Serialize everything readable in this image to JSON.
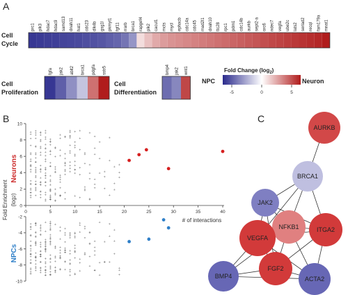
{
  "panels": {
    "a": "A",
    "b": "B",
    "c": "C"
  },
  "heatmap": {
    "row_labels": {
      "cell_cycle": [
        "Cell",
        "Cycle"
      ],
      "proliferation": [
        "Cell",
        "Proliferation"
      ],
      "differentiation": [
        "Cell",
        "Differentiation"
      ]
    },
    "cell_cycle_genes": [
      "prc1",
      "plk3",
      "hdac7",
      "hdac9",
      "samd13",
      "dnah11",
      "hat1",
      "cdc23",
      "dlk4b",
      "gsg1l",
      "pkmyt1",
      "fgf11",
      "rrarb",
      "brca1",
      "rapgef4",
      "plk2",
      "cacul1",
      "mcts",
      "mycl",
      "ephacb",
      "cdc14a",
      "cdc45",
      "mad2l1",
      "dnah10",
      "ttc28",
      "rpc1",
      "pdrn1",
      "cdc14b",
      "aurkb",
      "sept2-a",
      "orc6",
      "ndec7",
      "vegfa",
      "ube2c",
      "lats2",
      "serlad2",
      "recql",
      "fam179a",
      "mnat1"
    ],
    "cell_cycle_fc": [
      -7.5,
      -7.4,
      -7.3,
      -7.2,
      -7.0,
      -6.9,
      -6.8,
      -6.6,
      -6.5,
      -6.3,
      -6.0,
      -5.8,
      -5.2,
      -4.0,
      1.2,
      2.2,
      3.0,
      3.5,
      3.8,
      4.0,
      4.2,
      4.4,
      4.6,
      4.8,
      5.0,
      5.2,
      5.4,
      5.6,
      5.8,
      6.0,
      6.2,
      6.4,
      6.6,
      6.8,
      7.0,
      7.2,
      7.4,
      7.6,
      8.0
    ],
    "proliferation_genes": [
      "fgfa",
      "jak2",
      "ablt2",
      "brca1",
      "pdgfa",
      "sstr5"
    ],
    "proliferation_fc": [
      -7.5,
      -6.0,
      -4.2,
      -2.2,
      5.0,
      8.0
    ],
    "differentiation_genes": [
      "bmp4",
      "jak2",
      "wnt1"
    ],
    "differentiation_fc": [
      -5.5,
      -4.5,
      6.5
    ],
    "legend": {
      "title": "Fold Change (log",
      "title_sub": "2",
      "title_end": ")",
      "left_label": "NPC",
      "right_label": "Neuron",
      "ticks": [
        "-5",
        "0",
        "5"
      ]
    }
  },
  "chart_data": [
    {
      "type": "scatter",
      "panel": "B (top)",
      "ylabel": "Neurons",
      "ylim": [
        0,
        10
      ],
      "xlim": [
        0,
        40
      ],
      "highlight_color": "#d62020",
      "highlight_points": [
        [
          21,
          5.5
        ],
        [
          23,
          6.2
        ],
        [
          24.5,
          6.8
        ],
        [
          29,
          4.5
        ],
        [
          40,
          6.6
        ]
      ]
    },
    {
      "type": "scatter",
      "panel": "B (bottom)",
      "ylabel": "NPCs",
      "ylim": [
        -10,
        -2
      ],
      "xlim": [
        0,
        40
      ],
      "highlight_color": "#2f7fc8",
      "highlight_points": [
        [
          21,
          -5.1
        ],
        [
          25,
          -4.8
        ],
        [
          28,
          -2.4
        ],
        [
          29,
          -3.4
        ]
      ]
    }
  ],
  "scatter_text": {
    "y_label_main": "Fold Enrichment",
    "y_label_sub": "(log",
    "y_label_sub2": "2",
    "y_label_end": ")",
    "top_series": "Neurons",
    "bottom_series": "NPCs",
    "x_axis_title": "# of interactions",
    "x_ticks": [
      "0",
      "5",
      "10",
      "15",
      "20",
      "25",
      "30",
      "35",
      "40"
    ],
    "top_y_ticks": [
      "10",
      "8",
      "6",
      "4",
      "2",
      "0"
    ],
    "bottom_y_ticks": [
      "-2",
      "-4",
      "-6",
      "-8",
      "-10"
    ]
  },
  "network": {
    "nodes": [
      {
        "id": "AURKB",
        "label": "AURKB",
        "color": "#d24848"
      },
      {
        "id": "BRCA1",
        "label": "BRCA1",
        "color": "#bfbfe0"
      },
      {
        "id": "JAK2",
        "label": "JAK2",
        "color": "#7f7fc2"
      },
      {
        "id": "NFKB1",
        "label": "NFKB1",
        "color": "#e08080"
      },
      {
        "id": "ITGA2",
        "label": "ITGA2",
        "color": "#d23a3a"
      },
      {
        "id": "VEGFA",
        "label": "VEGFA",
        "color": "#d23a3a"
      },
      {
        "id": "FGF2",
        "label": "FGF2",
        "color": "#d23a3a"
      },
      {
        "id": "BMP4",
        "label": "BMP4",
        "color": "#6767b5"
      },
      {
        "id": "ACTA2",
        "label": "ACTA2",
        "color": "#6767b5"
      }
    ],
    "edges": [
      [
        "AURKB",
        "BRCA1"
      ],
      [
        "BRCA1",
        "JAK2"
      ],
      [
        "BRCA1",
        "NFKB1"
      ],
      [
        "BRCA1",
        "ITGA2"
      ],
      [
        "BRCA1",
        "VEGFA"
      ],
      [
        "JAK2",
        "NFKB1"
      ],
      [
        "JAK2",
        "VEGFA"
      ],
      [
        "JAK2",
        "ITGA2"
      ],
      [
        "JAK2",
        "FGF2"
      ],
      [
        "NFKB1",
        "ITGA2"
      ],
      [
        "NFKB1",
        "VEGFA"
      ],
      [
        "NFKB1",
        "FGF2"
      ],
      [
        "NFKB1",
        "ACTA2"
      ],
      [
        "NFKB1",
        "BMP4"
      ],
      [
        "ITGA2",
        "VEGFA"
      ],
      [
        "ITGA2",
        "FGF2"
      ],
      [
        "ITGA2",
        "ACTA2"
      ],
      [
        "VEGFA",
        "FGF2"
      ],
      [
        "VEGFA",
        "BMP4"
      ],
      [
        "VEGFA",
        "ACTA2"
      ],
      [
        "FGF2",
        "BMP4"
      ],
      [
        "FGF2",
        "ACTA2"
      ],
      [
        "BMP4",
        "ACTA2"
      ]
    ]
  }
}
